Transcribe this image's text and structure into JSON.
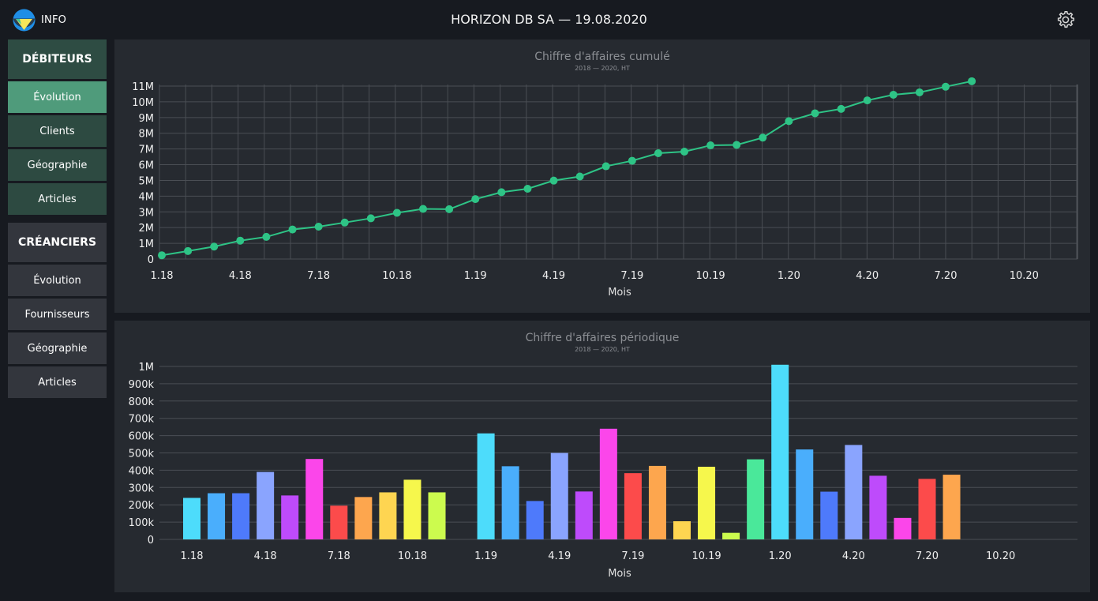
{
  "header": {
    "info_label": "INFO",
    "title": "HORIZON DB SA — 19.08.2020",
    "settings_icon": "gear-icon",
    "logo_icon": "logo-icon"
  },
  "sidebar": {
    "debiteurs": {
      "heading": "DÉBITEURS",
      "items": [
        "Évolution",
        "Clients",
        "Géographie",
        "Articles"
      ],
      "active": "Évolution"
    },
    "creanciers": {
      "heading": "CRÉANCIERS",
      "items": [
        "Évolution",
        "Fournisseurs",
        "Géographie",
        "Articles"
      ]
    }
  },
  "colors": {
    "background": "#171a20",
    "panel": "#262a30",
    "sidebar_green": "#2d4a41",
    "sidebar_active": "#4f9b7b",
    "sidebar_grey": "#33363d",
    "line": "#2ec486"
  },
  "chart_data": [
    {
      "type": "line",
      "title": "Chiffre d'affaires cumulé",
      "subtitle": "2018 — 2020, HT",
      "xlabel": "Mois",
      "ylabel": "",
      "x_ticks": [
        "1.18",
        "4.18",
        "7.18",
        "10.18",
        "1.19",
        "4.19",
        "7.19",
        "10.19",
        "1.20",
        "4.20",
        "7.20",
        "10.20"
      ],
      "y_ticks": [
        "0",
        "1M",
        "2M",
        "3M",
        "4M",
        "5M",
        "6M",
        "7M",
        "8M",
        "9M",
        "10M",
        "11M"
      ],
      "ylim": [
        0,
        11000000
      ],
      "grid": true,
      "x": [
        "1.18",
        "2.18",
        "3.18",
        "4.18",
        "5.18",
        "6.18",
        "7.18",
        "8.18",
        "9.18",
        "10.18",
        "11.18",
        "12.18",
        "1.19",
        "2.19",
        "3.19",
        "4.19",
        "5.19",
        "6.19",
        "7.19",
        "8.19",
        "9.19",
        "10.19",
        "11.19",
        "12.19",
        "1.20",
        "2.20",
        "3.20",
        "4.20",
        "5.20",
        "6.20",
        "7.20",
        "8.20"
      ],
      "values": [
        240000,
        510000,
        790000,
        1170000,
        1410000,
        1880000,
        2060000,
        2320000,
        2590000,
        2940000,
        3190000,
        3170000,
        3810000,
        4250000,
        4470000,
        4990000,
        5250000,
        5900000,
        6250000,
        6730000,
        6830000,
        7230000,
        7260000,
        7720000,
        8770000,
        9270000,
        9550000,
        10090000,
        10450000,
        10600000,
        10960000,
        11310000
      ]
    },
    {
      "type": "bar",
      "title": "Chiffre d'affaires périodique",
      "subtitle": "2018 — 2020, HT",
      "xlabel": "Mois",
      "ylabel": "",
      "x_ticks": [
        "1.18",
        "4.18",
        "7.18",
        "10.18",
        "1.19",
        "4.19",
        "7.19",
        "10.19",
        "1.20",
        "4.20",
        "7.20",
        "10.20"
      ],
      "y_ticks": [
        "0",
        "100k",
        "200k",
        "300k",
        "400k",
        "500k",
        "600k",
        "700k",
        "800k",
        "900k",
        "1M"
      ],
      "ylim": [
        0,
        1000000
      ],
      "grid": true,
      "categories": [
        "1.18",
        "2.18",
        "3.18",
        "4.18",
        "5.18",
        "6.18",
        "7.18",
        "8.18",
        "9.18",
        "10.18",
        "11.18",
        "12.18",
        "1.19",
        "2.19",
        "3.19",
        "4.19",
        "5.19",
        "6.19",
        "7.19",
        "8.19",
        "9.19",
        "10.19",
        "11.19",
        "12.19",
        "1.20",
        "2.20",
        "3.20",
        "4.20",
        "5.20",
        "6.20",
        "7.20",
        "8.20"
      ],
      "values": [
        240000,
        267000,
        267000,
        390000,
        254000,
        465000,
        195000,
        245000,
        272000,
        345000,
        272000,
        0,
        613000,
        423000,
        222000,
        500000,
        277000,
        640000,
        383000,
        425000,
        105000,
        420000,
        38000,
        463000,
        1010000,
        520000,
        276000,
        546000,
        368000,
        124000,
        350000,
        374000
      ],
      "colors": [
        "#4ddcfb",
        "#4aaefc",
        "#4e7afb",
        "#8aa4fe",
        "#be4bfb",
        "#fb46ea",
        "#fc4b4b",
        "#fda64e",
        "#fed551",
        "#f6f74c",
        "#ccfb4e",
        "#a5fb4f",
        "#4ddcfb",
        "#4aaefc",
        "#4e7afb",
        "#8aa4fe",
        "#be4bfb",
        "#fb46ea",
        "#fc4b4b",
        "#fda64e",
        "#fed551",
        "#f6f74c",
        "#ccfb4e",
        "#4ae89a",
        "#4ddcfb",
        "#4aaefc",
        "#4e7afb",
        "#8aa4fe",
        "#be4bfb",
        "#fb46ea",
        "#fc4b4b",
        "#fda64e"
      ]
    }
  ]
}
